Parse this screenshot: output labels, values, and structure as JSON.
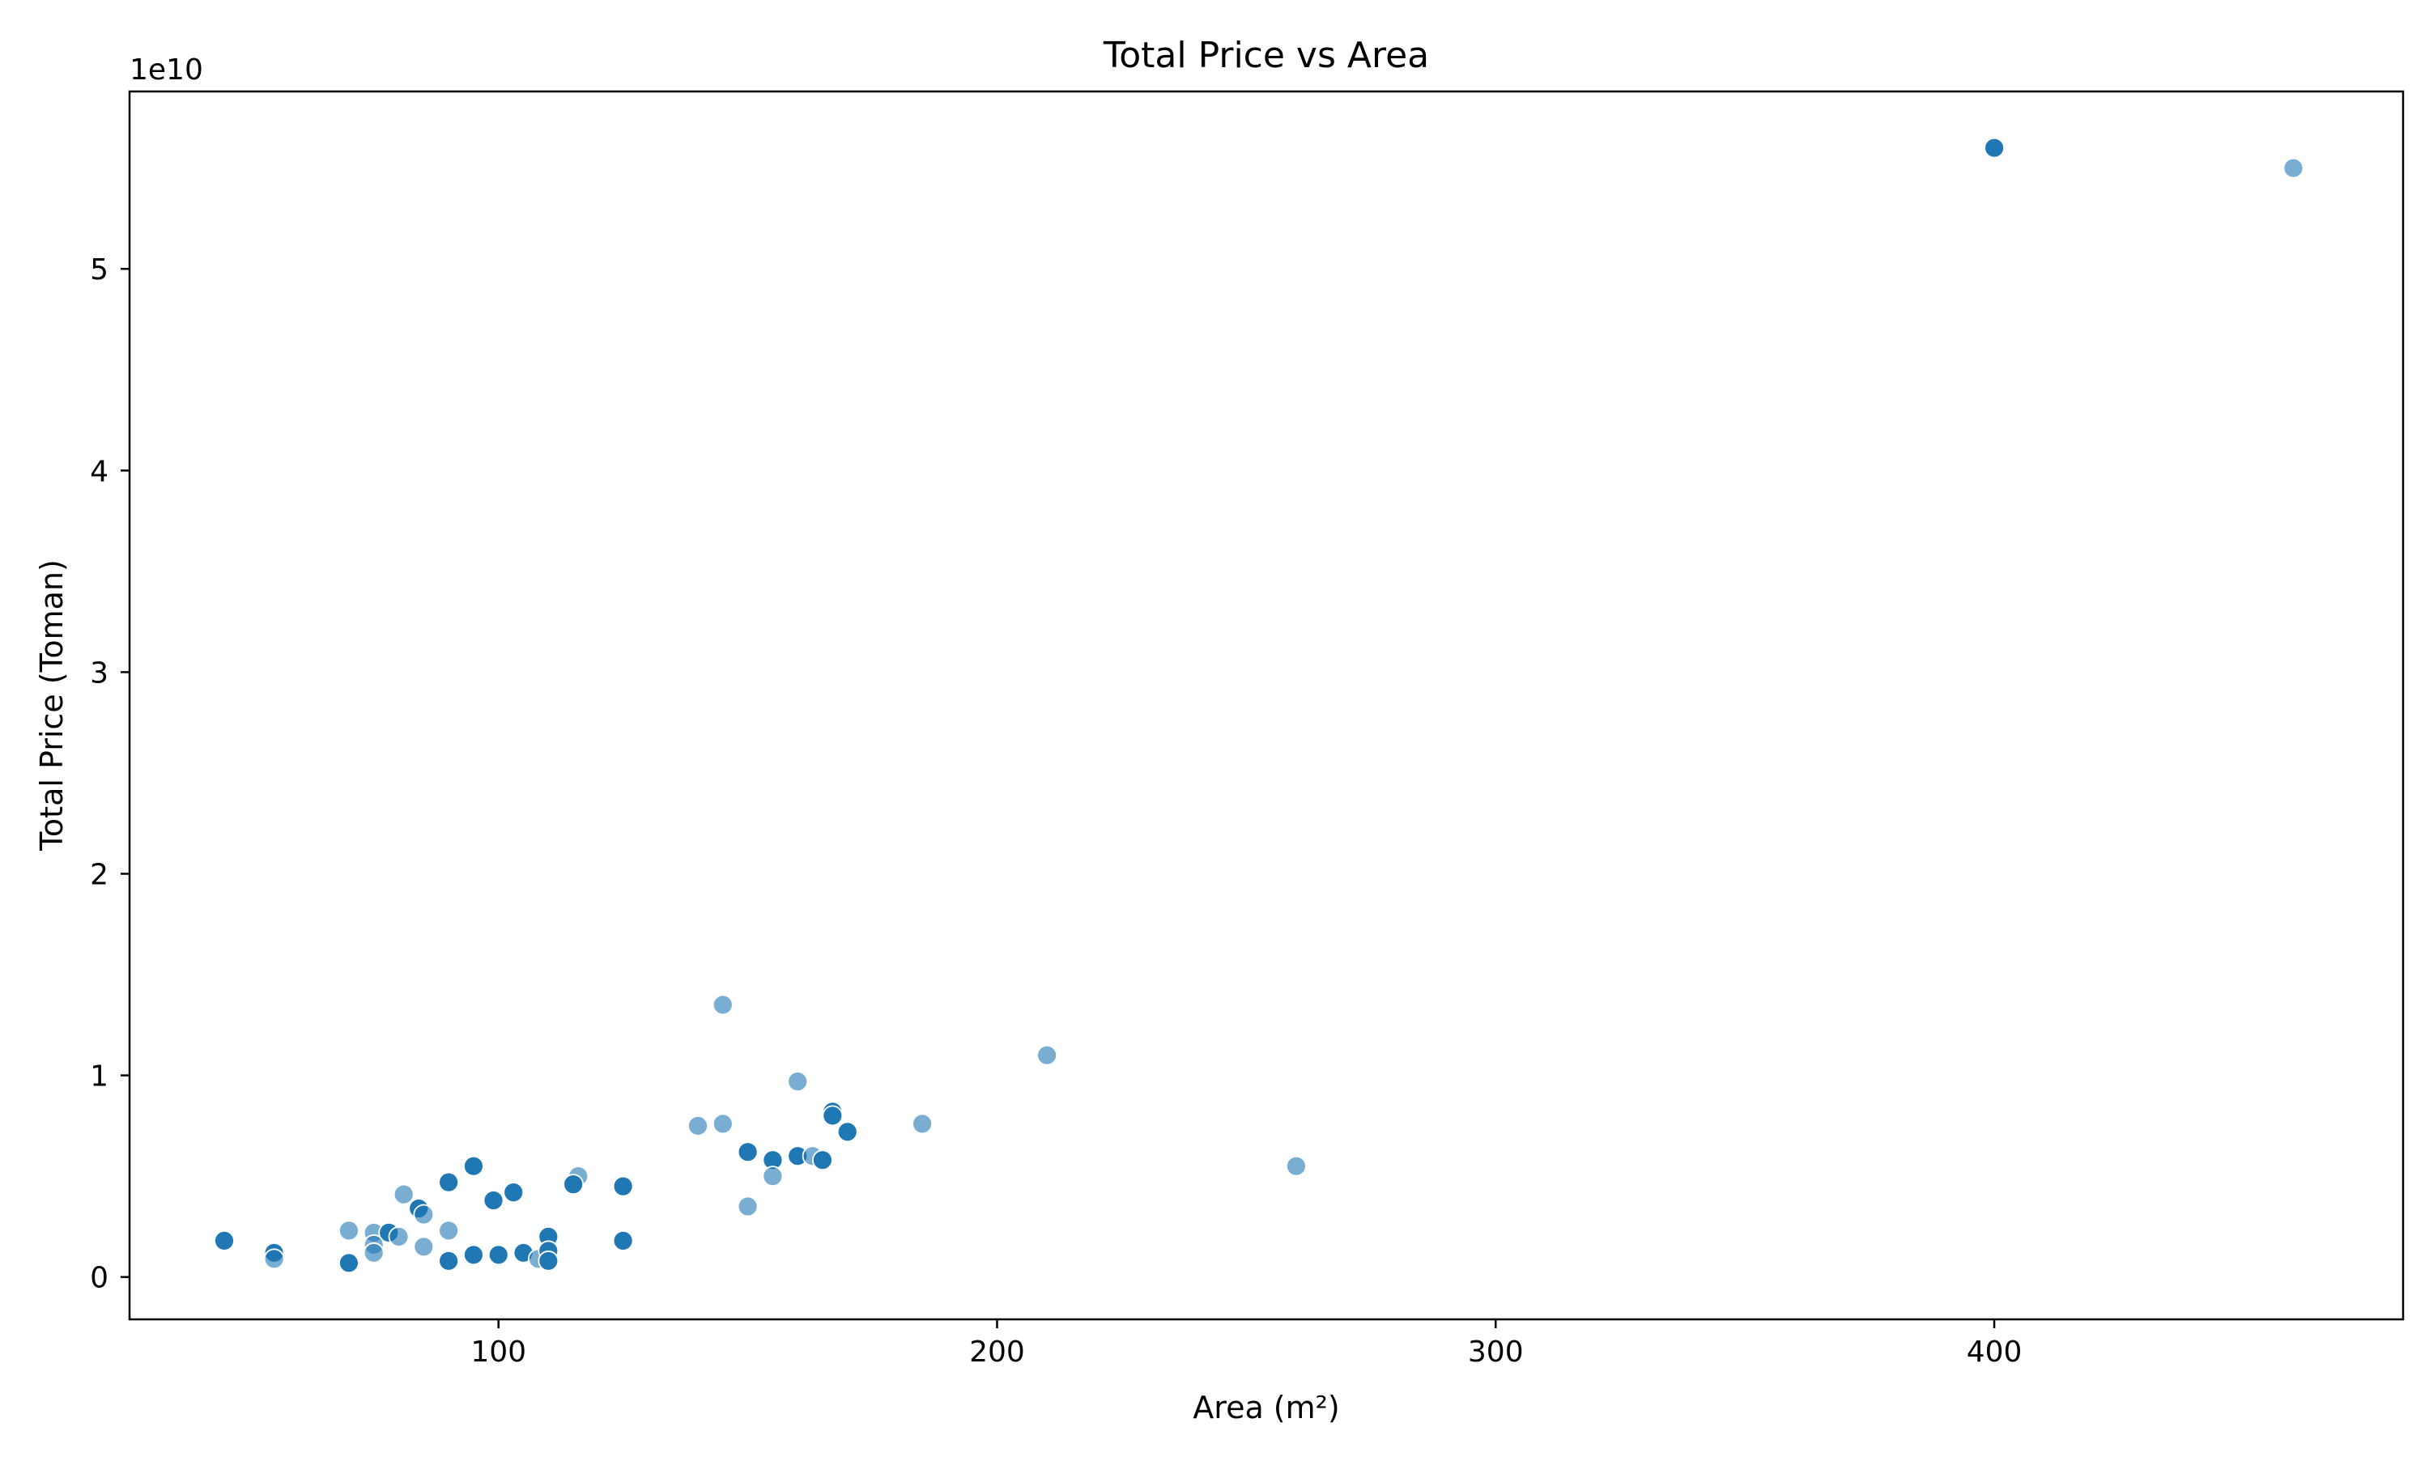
{
  "chart_data": {
    "type": "scatter",
    "title": "Total Price vs Area",
    "xlabel": "Area (m²)",
    "ylabel": "Total Price (Toman)",
    "offset_label": "1e10",
    "xlim": [
      26,
      482
    ],
    "ylim": [
      -2100000000.0,
      58800000000.0
    ],
    "xticks": [
      100,
      200,
      300,
      400
    ],
    "yticks": [
      0,
      10000000000.0,
      20000000000.0,
      30000000000.0,
      40000000000.0,
      50000000000.0
    ],
    "xtick_labels": [
      "100",
      "200",
      "300",
      "400"
    ],
    "ytick_labels": [
      "0",
      "1",
      "2",
      "3",
      "4",
      "5"
    ],
    "grid": false,
    "legend": "none",
    "colors": {
      "marker": "#1f77b4",
      "marker_edge": "#ffffff",
      "axes": "#000000"
    },
    "series": [
      {
        "points": [
          {
            "x": 400,
            "y": 56000000000.0,
            "shade": "dark"
          },
          {
            "x": 460,
            "y": 55000000000.0,
            "shade": "light"
          },
          {
            "x": 145,
            "y": 13500000000.0,
            "shade": "light"
          },
          {
            "x": 210,
            "y": 11000000000.0,
            "shade": "light"
          },
          {
            "x": 160,
            "y": 9700000000.0,
            "shade": "light"
          },
          {
            "x": 167,
            "y": 8200000000.0,
            "shade": "dark"
          },
          {
            "x": 167,
            "y": 8000000000.0,
            "shade": "dark"
          },
          {
            "x": 140,
            "y": 7500000000.0,
            "shade": "light"
          },
          {
            "x": 145,
            "y": 7600000000.0,
            "shade": "light"
          },
          {
            "x": 185,
            "y": 7600000000.0,
            "shade": "light"
          },
          {
            "x": 170,
            "y": 7200000000.0,
            "shade": "dark"
          },
          {
            "x": 150,
            "y": 6200000000.0,
            "shade": "dark"
          },
          {
            "x": 155,
            "y": 5800000000.0,
            "shade": "dark"
          },
          {
            "x": 160,
            "y": 6000000000.0,
            "shade": "dark"
          },
          {
            "x": 163,
            "y": 6000000000.0,
            "shade": "light"
          },
          {
            "x": 165,
            "y": 5800000000.0,
            "shade": "dark"
          },
          {
            "x": 260,
            "y": 5500000000.0,
            "shade": "light"
          },
          {
            "x": 155,
            "y": 5000000000.0,
            "shade": "light"
          },
          {
            "x": 150,
            "y": 3500000000.0,
            "shade": "light"
          },
          {
            "x": 95,
            "y": 5500000000.0,
            "shade": "dark"
          },
          {
            "x": 116,
            "y": 5000000000.0,
            "shade": "light"
          },
          {
            "x": 115,
            "y": 4600000000.0,
            "shade": "dark"
          },
          {
            "x": 125,
            "y": 4500000000.0,
            "shade": "dark"
          },
          {
            "x": 90,
            "y": 4700000000.0,
            "shade": "dark"
          },
          {
            "x": 103,
            "y": 4200000000.0,
            "shade": "dark"
          },
          {
            "x": 81,
            "y": 4100000000.0,
            "shade": "light"
          },
          {
            "x": 99,
            "y": 3800000000.0,
            "shade": "dark"
          },
          {
            "x": 84,
            "y": 3400000000.0,
            "shade": "dark"
          },
          {
            "x": 85,
            "y": 3100000000.0,
            "shade": "light"
          },
          {
            "x": 70,
            "y": 2300000000.0,
            "shade": "light"
          },
          {
            "x": 75,
            "y": 2200000000.0,
            "shade": "light"
          },
          {
            "x": 78,
            "y": 2200000000.0,
            "shade": "dark"
          },
          {
            "x": 80,
            "y": 2000000000.0,
            "shade": "light"
          },
          {
            "x": 90,
            "y": 2300000000.0,
            "shade": "light"
          },
          {
            "x": 75,
            "y": 1600000000.0,
            "shade": "light"
          },
          {
            "x": 75,
            "y": 1200000000.0,
            "shade": "light"
          },
          {
            "x": 85,
            "y": 1500000000.0,
            "shade": "light"
          },
          {
            "x": 45,
            "y": 1800000000.0,
            "shade": "dark"
          },
          {
            "x": 55,
            "y": 1200000000.0,
            "shade": "dark"
          },
          {
            "x": 55,
            "y": 900000000.0,
            "shade": "light"
          },
          {
            "x": 70,
            "y": 700000000.0,
            "shade": "dark"
          },
          {
            "x": 90,
            "y": 800000000.0,
            "shade": "dark"
          },
          {
            "x": 95,
            "y": 1100000000.0,
            "shade": "dark"
          },
          {
            "x": 100,
            "y": 1100000000.0,
            "shade": "dark"
          },
          {
            "x": 105,
            "y": 1200000000.0,
            "shade": "dark"
          },
          {
            "x": 108,
            "y": 900000000.0,
            "shade": "light"
          },
          {
            "x": 110,
            "y": 2000000000.0,
            "shade": "dark"
          },
          {
            "x": 110,
            "y": 1300000000.0,
            "shade": "dark"
          },
          {
            "x": 110,
            "y": 800000000.0,
            "shade": "dark"
          },
          {
            "x": 125,
            "y": 1800000000.0,
            "shade": "dark"
          }
        ]
      }
    ]
  }
}
